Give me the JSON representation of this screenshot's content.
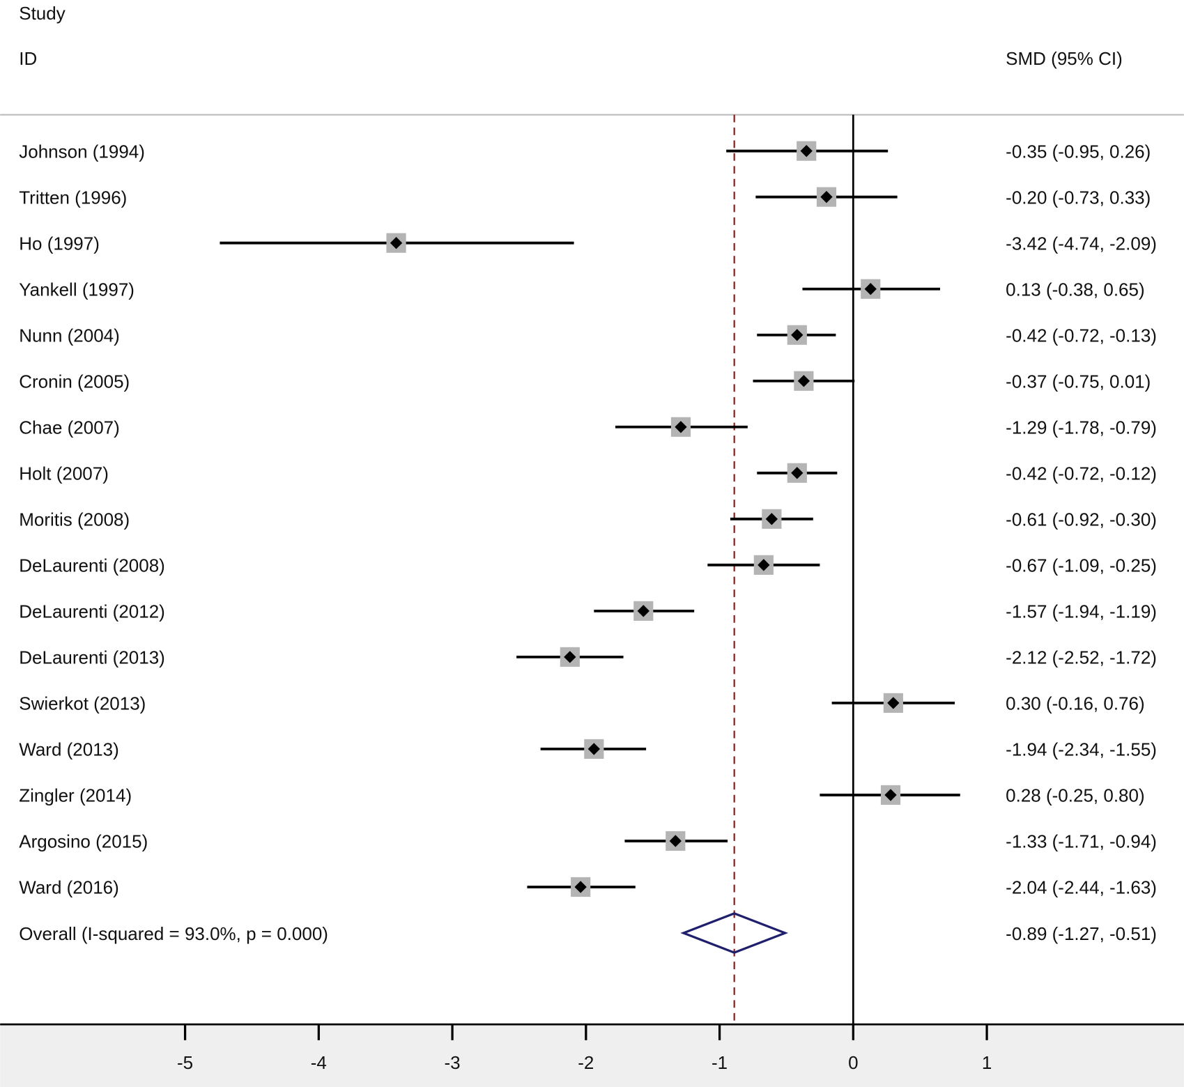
{
  "chart_data": {
    "type": "forest",
    "header": {
      "col1_line1": "Study",
      "col1_line2": "ID",
      "col2": "SMD (95% CI)"
    },
    "xlim": [
      -5,
      1.5
    ],
    "xticks": [
      -5,
      -4,
      -3,
      -2,
      -1,
      0,
      1
    ],
    "studies": [
      {
        "name": "Johnson (1994)",
        "est": -0.35,
        "lo": -0.95,
        "hi": 0.26,
        "label": "-0.35 (-0.95, 0.26)"
      },
      {
        "name": "Tritten (1996)",
        "est": -0.2,
        "lo": -0.73,
        "hi": 0.33,
        "label": "-0.20 (-0.73, 0.33)"
      },
      {
        "name": "Ho (1997)",
        "est": -3.42,
        "lo": -4.74,
        "hi": -2.09,
        "label": "-3.42 (-4.74, -2.09)"
      },
      {
        "name": "Yankell (1997)",
        "est": 0.13,
        "lo": -0.38,
        "hi": 0.65,
        "label": "0.13 (-0.38, 0.65)"
      },
      {
        "name": "Nunn (2004)",
        "est": -0.42,
        "lo": -0.72,
        "hi": -0.13,
        "label": "-0.42 (-0.72, -0.13)"
      },
      {
        "name": "Cronin (2005)",
        "est": -0.37,
        "lo": -0.75,
        "hi": 0.01,
        "label": "-0.37 (-0.75, 0.01)"
      },
      {
        "name": "Chae (2007)",
        "est": -1.29,
        "lo": -1.78,
        "hi": -0.79,
        "label": "-1.29 (-1.78, -0.79)"
      },
      {
        "name": "Holt (2007)",
        "est": -0.42,
        "lo": -0.72,
        "hi": -0.12,
        "label": "-0.42 (-0.72, -0.12)"
      },
      {
        "name": "Moritis (2008)",
        "est": -0.61,
        "lo": -0.92,
        "hi": -0.3,
        "label": "-0.61 (-0.92, -0.30)"
      },
      {
        "name": "DeLaurenti (2008)",
        "est": -0.67,
        "lo": -1.09,
        "hi": -0.25,
        "label": "-0.67 (-1.09, -0.25)"
      },
      {
        "name": "DeLaurenti (2012)",
        "est": -1.57,
        "lo": -1.94,
        "hi": -1.19,
        "label": "-1.57 (-1.94, -1.19)"
      },
      {
        "name": "DeLaurenti (2013)",
        "est": -2.12,
        "lo": -2.52,
        "hi": -1.72,
        "label": "-2.12 (-2.52, -1.72)"
      },
      {
        "name": "Swierkot (2013)",
        "est": 0.3,
        "lo": -0.16,
        "hi": 0.76,
        "label": "0.30 (-0.16, 0.76)"
      },
      {
        "name": "Ward (2013)",
        "est": -1.94,
        "lo": -2.34,
        "hi": -1.55,
        "label": "-1.94 (-2.34, -1.55)"
      },
      {
        "name": "Zingler (2014)",
        "est": 0.28,
        "lo": -0.25,
        "hi": 0.8,
        "label": "0.28 (-0.25, 0.80)"
      },
      {
        "name": "Argosino (2015)",
        "est": -1.33,
        "lo": -1.71,
        "hi": -0.94,
        "label": "-1.33 (-1.71, -0.94)"
      },
      {
        "name": "Ward (2016)",
        "est": -2.04,
        "lo": -2.44,
        "hi": -1.63,
        "label": "-2.04 (-2.44, -1.63)"
      }
    ],
    "overall": {
      "name": "Overall  (I-squared = 93.0%, p = 0.000)",
      "est": -0.89,
      "lo": -1.27,
      "hi": -0.51,
      "label": "-0.89 (-1.27, -0.51)"
    },
    "colors": {
      "overall_diamond": "#1f1f6e",
      "reference_line": "#8b1a1a",
      "box": "#b4b4b4",
      "axis_band": "#efefef"
    }
  }
}
